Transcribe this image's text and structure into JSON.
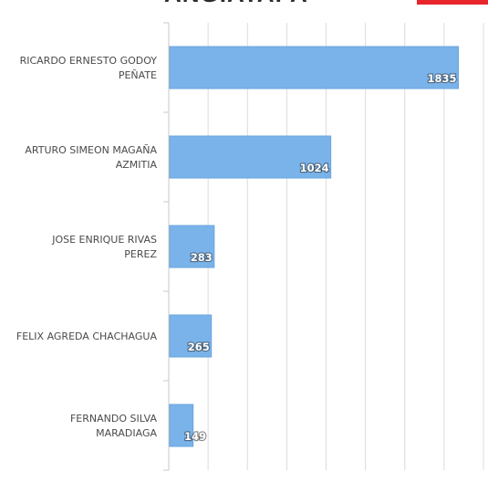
{
  "chart_data": {
    "type": "bar",
    "orientation": "horizontal",
    "title": "ANGIATAPA",
    "categories": [
      [
        "RICARDO ERNESTO GODOY",
        "PEÑATE"
      ],
      [
        "ARTURO SIMEON MAGAÑA",
        "AZMITIA"
      ],
      [
        "JOSE ENRIQUE RIVAS",
        "PEREZ"
      ],
      [
        "FELIX AGREDA CHACHAGUA"
      ],
      [
        "FERNANDO SILVA",
        "MARADIAGA"
      ]
    ],
    "values": [
      1835,
      1024,
      283,
      265,
      149
    ],
    "xlim": [
      0,
      2000
    ],
    "grid": true,
    "bar_color": "#7ab3ea",
    "bar_edge_color": "#6aa4dd",
    "grid_color": "#dcdcdc",
    "logo_color": "#e8242c"
  }
}
